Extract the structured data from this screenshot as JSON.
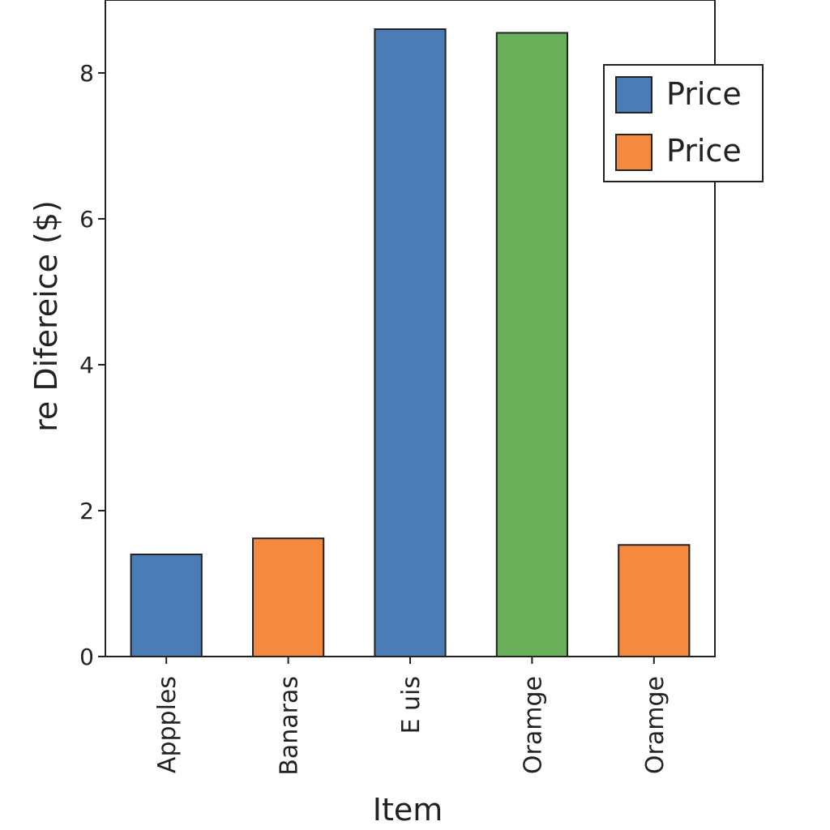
{
  "chart_data": {
    "type": "bar",
    "title": "",
    "xlabel": "Item",
    "ylabel": "re  Difereice ($)",
    "categories": [
      "Appples",
      "Banaras",
      "E uis",
      "Oramge",
      "Oramge"
    ],
    "values": [
      1.4,
      1.62,
      8.6,
      8.55,
      1.53
    ],
    "bar_colors": [
      "#4a7db5",
      "#f5893d",
      "#4a7db5",
      "#6ab05a",
      "#f5893d"
    ],
    "ylim": [
      0,
      9
    ],
    "yticks": [
      0,
      2,
      4,
      6,
      8
    ],
    "ytick_labels": [
      "0",
      "2",
      "4",
      "6",
      "8"
    ],
    "grid": false,
    "legend": {
      "placement": "top-right",
      "entries": [
        {
          "label": "Price",
          "color": "#4a7db5"
        },
        {
          "label": "Price",
          "color": "#f5893d"
        }
      ]
    }
  }
}
